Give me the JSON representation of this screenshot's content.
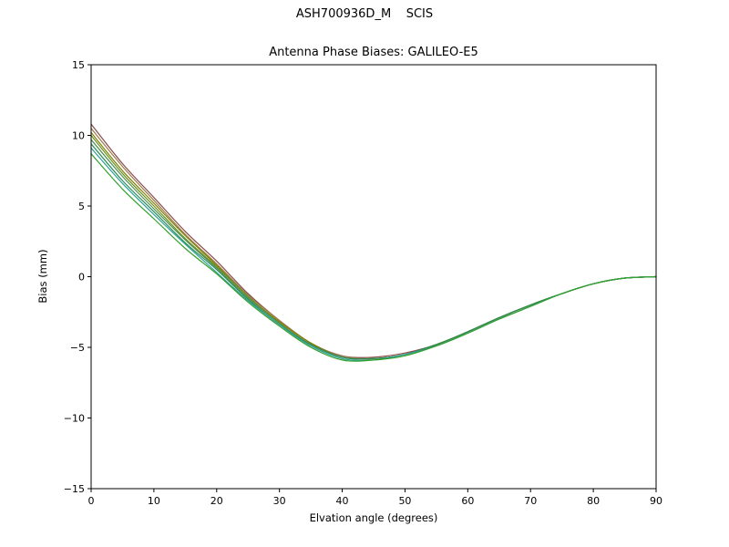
{
  "chart_data": {
    "type": "line",
    "suptitle": "ASH700936D_M    SCIS",
    "title": "Antenna Phase Biases: GALILEO-E5",
    "xlabel": "Elvation angle (degrees)",
    "ylabel": "Bias (mm)",
    "xlim": [
      0,
      90
    ],
    "ylim": [
      -15,
      15
    ],
    "xticks": [
      0,
      10,
      20,
      30,
      40,
      50,
      60,
      70,
      80,
      90
    ],
    "yticks": [
      -15,
      -10,
      -5,
      0,
      5,
      10,
      15
    ],
    "grid": false,
    "legend": "none",
    "x": [
      0,
      5,
      10,
      15,
      20,
      25,
      30,
      35,
      40,
      45,
      50,
      55,
      60,
      65,
      70,
      75,
      80,
      85,
      90
    ],
    "series": [
      {
        "name": "line-1",
        "color": "#8b4a4a",
        "values": [
          10.8,
          8.0,
          5.6,
          3.2,
          1.1,
          -1.2,
          -3.1,
          -4.7,
          -5.6,
          -5.7,
          -5.4,
          -4.8,
          -3.9,
          -2.9,
          -2.0,
          -1.2,
          -0.5,
          -0.1,
          0.0
        ]
      },
      {
        "name": "line-2",
        "color": "#9a7b4f",
        "values": [
          10.5,
          7.8,
          5.4,
          3.0,
          0.9,
          -1.3,
          -3.1,
          -4.7,
          -5.6,
          -5.8,
          -5.5,
          -4.8,
          -3.9,
          -2.9,
          -2.0,
          -1.2,
          -0.5,
          -0.1,
          0.0
        ]
      },
      {
        "name": "line-3",
        "color": "#808000",
        "values": [
          10.2,
          7.5,
          5.2,
          2.9,
          0.8,
          -1.4,
          -3.2,
          -4.7,
          -5.7,
          -5.8,
          -5.5,
          -4.8,
          -3.9,
          -2.9,
          -2.0,
          -1.2,
          -0.5,
          -0.1,
          0.0
        ]
      },
      {
        "name": "line-4",
        "color": "#6b8e23",
        "values": [
          10.0,
          7.3,
          5.0,
          2.7,
          0.7,
          -1.4,
          -3.3,
          -4.8,
          -5.7,
          -5.8,
          -5.5,
          -4.8,
          -3.9,
          -2.9,
          -2.0,
          -1.2,
          -0.5,
          -0.1,
          0.0
        ]
      },
      {
        "name": "line-5",
        "color": "#4f9153",
        "values": [
          9.7,
          7.1,
          4.8,
          2.6,
          0.6,
          -1.5,
          -3.3,
          -4.8,
          -5.7,
          -5.8,
          -5.5,
          -4.8,
          -3.9,
          -2.9,
          -2.0,
          -1.2,
          -0.5,
          -0.1,
          0.0
        ]
      },
      {
        "name": "line-6",
        "color": "#2e8b57",
        "values": [
          9.4,
          6.8,
          4.6,
          2.4,
          0.5,
          -1.6,
          -3.4,
          -4.8,
          -5.7,
          -5.8,
          -5.5,
          -4.8,
          -3.9,
          -2.9,
          -2.0,
          -1.2,
          -0.5,
          -0.1,
          0.0
        ]
      },
      {
        "name": "line-7",
        "color": "#2aa198",
        "values": [
          9.1,
          6.6,
          4.4,
          2.3,
          0.3,
          -1.7,
          -3.4,
          -4.9,
          -5.8,
          -5.9,
          -5.5,
          -4.9,
          -4.0,
          -3.0,
          -2.1,
          -1.2,
          -0.5,
          -0.1,
          0.0
        ]
      },
      {
        "name": "line-8",
        "color": "#33a02c",
        "values": [
          8.7,
          6.2,
          4.1,
          2.0,
          0.2,
          -1.8,
          -3.5,
          -5.0,
          -5.9,
          -5.9,
          -5.6,
          -4.9,
          -4.0,
          -3.0,
          -2.1,
          -1.2,
          -0.5,
          -0.1,
          0.0
        ]
      }
    ]
  }
}
